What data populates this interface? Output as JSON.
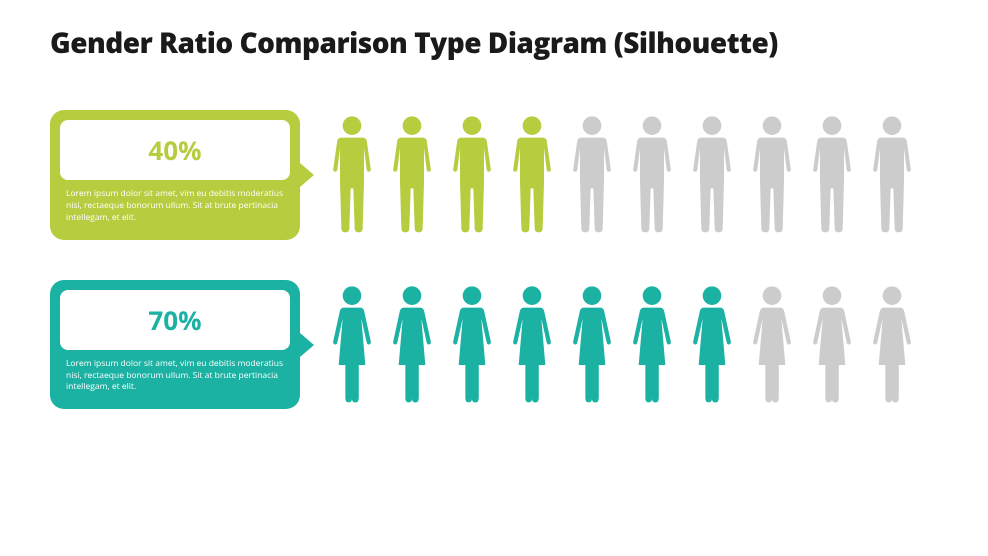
{
  "title": "Gender Ratio Comparison Type Diagram (Silhouette)",
  "inactive_color": "#cccccc",
  "background_color": "#ffffff",
  "rows": [
    {
      "id": "male",
      "percent_label": "40%",
      "description": "Lorem ipsum dolor sit amet, vim eu debitis moderatius nisi, rectaeque bonorum ullum. Sit at brute pertinacia intellegam, et elit.",
      "color": "#b8cc3f",
      "text_color": "#ffffff",
      "total_icons": 10,
      "filled_icons": 4,
      "silhouette": "male"
    },
    {
      "id": "female",
      "percent_label": "70%",
      "description": "Lorem ipsum dolor sit amet, vim eu debitis moderatius nisi, rectaeque bonorum ullum. Sit at brute pertinacia intellegam, et elit.",
      "color": "#1bb2a3",
      "text_color": "#ffffff",
      "total_icons": 10,
      "filled_icons": 7,
      "silhouette": "female"
    }
  ],
  "typography": {
    "title_fontsize": 28,
    "title_weight": 800,
    "percent_fontsize": 26,
    "percent_weight": 700,
    "description_fontsize": 8.5
  }
}
